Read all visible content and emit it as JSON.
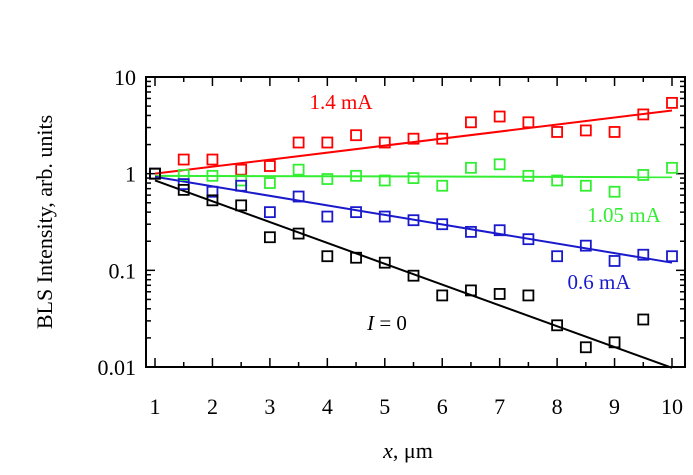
{
  "chart_data": {
    "type": "scatter",
    "title": "",
    "xlabel": {
      "symbol": "x",
      "unit": ", μm"
    },
    "ylabel": "BLS Intensity, arb. units",
    "xlim": [
      1,
      10
    ],
    "ylim": [
      0.01,
      10
    ],
    "yscale": "log",
    "x_ticks": [
      "1",
      "2",
      "3",
      "4",
      "5",
      "6",
      "7",
      "8",
      "9",
      "10"
    ],
    "y_ticks": [
      {
        "value": 10,
        "label": "10"
      },
      {
        "value": 1,
        "label": "1"
      },
      {
        "value": 0.1,
        "label": "0.1"
      },
      {
        "value": 0.01,
        "label": "0.01"
      }
    ],
    "grid": false,
    "marker": "open-square",
    "series": [
      {
        "name": "1.4 mA",
        "color": "#ff0000",
        "x": [
          1,
          1.5,
          2,
          2.5,
          3,
          3.5,
          4,
          4.5,
          5,
          5.5,
          6,
          6.5,
          7,
          7.5,
          8,
          8.5,
          9,
          9.5,
          10
        ],
        "y": [
          1.0,
          1.4,
          1.4,
          1.1,
          1.2,
          2.1,
          2.1,
          2.5,
          2.1,
          2.3,
          2.3,
          3.4,
          3.9,
          3.4,
          2.7,
          2.8,
          2.7,
          4.1,
          5.4
        ],
        "fit": [
          [
            1,
            1.0
          ],
          [
            10,
            4.5
          ]
        ]
      },
      {
        "name": "1.05 mA",
        "color": "#33ee33",
        "x": [
          1,
          1.5,
          2,
          2.5,
          3,
          3.5,
          4,
          4.5,
          5,
          5.5,
          6,
          6.5,
          7,
          7.5,
          8,
          8.5,
          9,
          9.5,
          10
        ],
        "y": [
          1.0,
          0.97,
          0.95,
          0.85,
          0.8,
          1.1,
          0.88,
          0.95,
          0.85,
          0.9,
          0.75,
          1.15,
          1.25,
          0.95,
          0.85,
          0.75,
          0.65,
          0.97,
          1.15
        ],
        "fit": [
          [
            1,
            0.95
          ],
          [
            10,
            0.92
          ]
        ]
      },
      {
        "name": "0.6 mA",
        "color": "#1a1acc",
        "x": [
          1,
          1.5,
          2,
          2.5,
          3,
          3.5,
          4,
          4.5,
          5,
          5.5,
          6,
          6.5,
          7,
          7.5,
          8,
          8.5,
          9,
          9.5,
          10
        ],
        "y": [
          1.0,
          0.78,
          0.65,
          0.75,
          0.4,
          0.58,
          0.36,
          0.4,
          0.36,
          0.33,
          0.3,
          0.25,
          0.26,
          0.21,
          0.14,
          0.18,
          0.125,
          0.145,
          0.14
        ],
        "fit": [
          [
            1,
            0.93
          ],
          [
            10,
            0.12
          ]
        ]
      },
      {
        "name": "I = 0",
        "label_symbol": "I",
        "label_value": " = 0",
        "color": "#000000",
        "x": [
          1,
          1.5,
          2,
          2.5,
          3,
          3.5,
          4,
          4.5,
          5,
          5.5,
          6,
          6.5,
          7,
          7.5,
          8,
          8.5,
          9,
          9.5
        ],
        "y": [
          1.0,
          0.68,
          0.53,
          0.47,
          0.22,
          0.24,
          0.14,
          0.135,
          0.12,
          0.088,
          0.055,
          0.062,
          0.057,
          0.055,
          0.027,
          0.016,
          0.018,
          0.031
        ],
        "fit": [
          [
            1,
            0.85
          ],
          [
            10,
            0.0098
          ]
        ]
      }
    ]
  }
}
